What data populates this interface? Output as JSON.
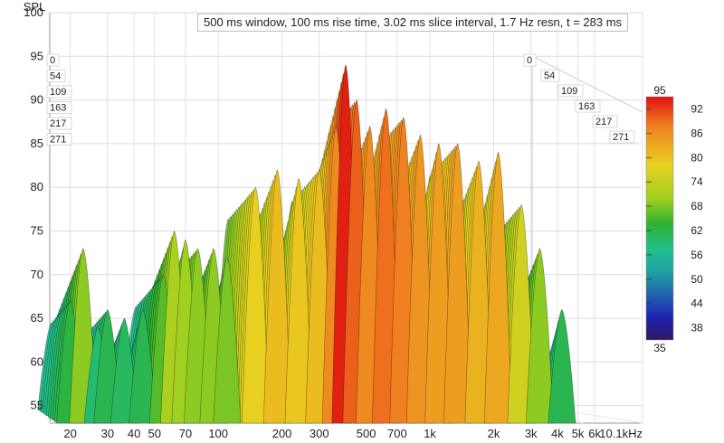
{
  "chart_data": {
    "type": "waterfall",
    "title": "500 ms window, 100 ms rise time, 3.02 ms slice interval, 1.7 Hz resn, t = 283 ms",
    "ylabel": "SPL",
    "ylim": [
      53,
      100
    ],
    "y_ticks": [
      55,
      60,
      65,
      70,
      75,
      80,
      85,
      90,
      95,
      100
    ],
    "x_scale": "log",
    "xlim": [
      16,
      10100
    ],
    "x_ticks": [
      {
        "value": 20,
        "label": "20"
      },
      {
        "value": 30,
        "label": "30"
      },
      {
        "value": 40,
        "label": "40"
      },
      {
        "value": 50,
        "label": "50"
      },
      {
        "value": 70,
        "label": "70"
      },
      {
        "value": 100,
        "label": "100"
      },
      {
        "value": 200,
        "label": "200"
      },
      {
        "value": 300,
        "label": "300"
      },
      {
        "value": 500,
        "label": "500"
      },
      {
        "value": 700,
        "label": "700"
      },
      {
        "value": 1000,
        "label": "1k"
      },
      {
        "value": 2000,
        "label": "2k"
      },
      {
        "value": 3000,
        "label": "3k"
      },
      {
        "value": 4000,
        "label": "4k"
      },
      {
        "value": 5000,
        "label": "5k"
      },
      {
        "value": 6000,
        "label": "6k"
      },
      {
        "value": 10100,
        "label": "10.1kHz"
      }
    ],
    "time_axis_unit": "ms",
    "time_ticks_left": [
      "0",
      "54",
      "109",
      "163",
      "217",
      "271"
    ],
    "time_ticks_right": [
      "0",
      "54",
      "109",
      "163",
      "217",
      "271"
    ],
    "colorbar": {
      "min": 35,
      "max": 95,
      "ticks": [
        "92",
        "86",
        "80",
        "74",
        "68",
        "62",
        "56",
        "50",
        "44",
        "38"
      ],
      "min_label": "35",
      "max_label": "95"
    },
    "peaks": [
      {
        "freq": 20,
        "spl": 67
      },
      {
        "freq": 23,
        "spl": 73
      },
      {
        "freq": 27,
        "spl": 64
      },
      {
        "freq": 30,
        "spl": 66
      },
      {
        "freq": 36,
        "spl": 65
      },
      {
        "freq": 44,
        "spl": 66
      },
      {
        "freq": 55,
        "spl": 70
      },
      {
        "freq": 62,
        "spl": 75
      },
      {
        "freq": 70,
        "spl": 74
      },
      {
        "freq": 80,
        "spl": 73
      },
      {
        "freq": 95,
        "spl": 73
      },
      {
        "freq": 110,
        "spl": 72
      },
      {
        "freq": 150,
        "spl": 80
      },
      {
        "freq": 190,
        "spl": 82
      },
      {
        "freq": 240,
        "spl": 81
      },
      {
        "freq": 300,
        "spl": 82
      },
      {
        "freq": 360,
        "spl": 87
      },
      {
        "freq": 400,
        "spl": 94
      },
      {
        "freq": 450,
        "spl": 90
      },
      {
        "freq": 520,
        "spl": 87
      },
      {
        "freq": 620,
        "spl": 89
      },
      {
        "freq": 750,
        "spl": 88
      },
      {
        "freq": 900,
        "spl": 86
      },
      {
        "freq": 1100,
        "spl": 85
      },
      {
        "freq": 1350,
        "spl": 85
      },
      {
        "freq": 1700,
        "spl": 83
      },
      {
        "freq": 2100,
        "spl": 84
      },
      {
        "freq": 2700,
        "spl": 78
      },
      {
        "freq": 3300,
        "spl": 73
      },
      {
        "freq": 4200,
        "spl": 66
      }
    ],
    "grid": true,
    "legend": "right"
  }
}
